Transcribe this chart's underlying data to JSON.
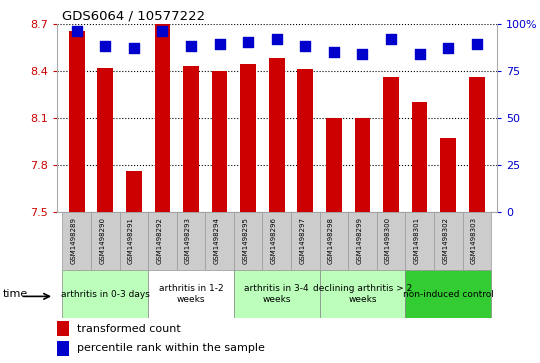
{
  "title": "GDS6064 / 10577222",
  "samples": [
    "GSM1498289",
    "GSM1498290",
    "GSM1498291",
    "GSM1498292",
    "GSM1498293",
    "GSM1498294",
    "GSM1498295",
    "GSM1498296",
    "GSM1498297",
    "GSM1498298",
    "GSM1498299",
    "GSM1498300",
    "GSM1498301",
    "GSM1498302",
    "GSM1498303"
  ],
  "transformed_count": [
    8.65,
    8.42,
    7.76,
    8.7,
    8.43,
    8.4,
    8.44,
    8.48,
    8.41,
    8.1,
    8.1,
    8.36,
    8.2,
    7.97,
    8.36
  ],
  "percentile_rank": [
    96,
    88,
    87,
    96,
    88,
    89,
    90,
    92,
    88,
    85,
    84,
    92,
    84,
    87,
    89
  ],
  "ylim_left": [
    7.5,
    8.7
  ],
  "ylim_right": [
    0,
    100
  ],
  "yticks_left": [
    7.5,
    7.8,
    8.1,
    8.4,
    8.7
  ],
  "yticks_right": [
    0,
    25,
    50,
    75,
    100
  ],
  "bar_color": "#cc0000",
  "dot_color": "#0000cc",
  "groups": [
    {
      "label": "arthritis in 0-3 days",
      "start": 0,
      "end": 3,
      "color": "#bbffbb"
    },
    {
      "label": "arthritis in 1-2\nweeks",
      "start": 3,
      "end": 6,
      "color": "#ffffff"
    },
    {
      "label": "arthritis in 3-4\nweeks",
      "start": 6,
      "end": 9,
      "color": "#bbffbb"
    },
    {
      "label": "declining arthritis > 2\nweeks",
      "start": 9,
      "end": 12,
      "color": "#bbffbb"
    },
    {
      "label": "non-induced control",
      "start": 12,
      "end": 15,
      "color": "#33cc33"
    }
  ],
  "legend_bar_label": "transformed count",
  "legend_dot_label": "percentile rank within the sample",
  "tick_color_left": "#cc0000",
  "tick_color_right": "#0000cc",
  "bar_width": 0.55,
  "dot_size": 50,
  "plot_bg": "#ffffff",
  "sample_box_color": "#cccccc",
  "sample_box_edge": "#999999"
}
